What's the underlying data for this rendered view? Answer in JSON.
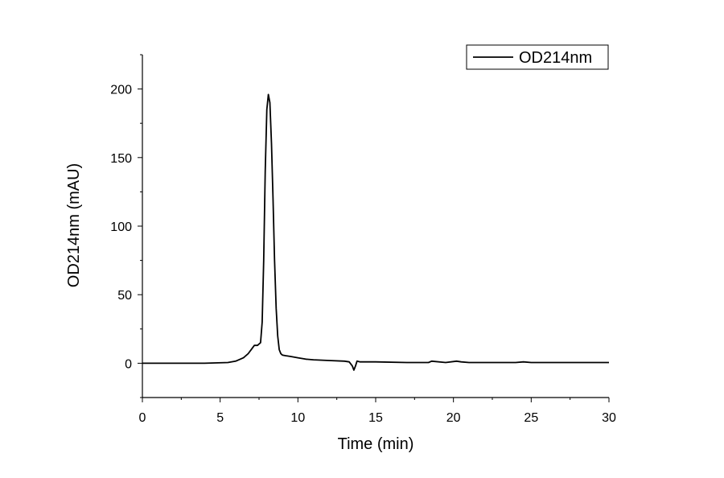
{
  "chart_data": {
    "type": "line",
    "title": "",
    "xlabel": "Time (min)",
    "ylabel": "OD214nm (mAU)",
    "xlim": [
      0,
      30
    ],
    "ylim": [
      -25,
      225
    ],
    "xticks": [
      0,
      5,
      10,
      15,
      20,
      25,
      30
    ],
    "xtick_labels": [
      "0",
      "5",
      "10",
      "15",
      "20",
      "25",
      "30"
    ],
    "yticks": [
      0,
      50,
      100,
      150,
      200
    ],
    "ytick_labels": [
      "0",
      "50",
      "100",
      "150",
      "200"
    ],
    "grid": false,
    "legend": {
      "position": "top-right",
      "entries": [
        "OD214nm"
      ]
    },
    "series": [
      {
        "name": "OD214nm",
        "color": "#000000",
        "x": [
          0,
          2,
          4,
          5.5,
          6.0,
          6.5,
          6.8,
          7.0,
          7.2,
          7.4,
          7.6,
          7.7,
          7.8,
          7.9,
          8.0,
          8.1,
          8.2,
          8.3,
          8.4,
          8.5,
          8.6,
          8.7,
          8.8,
          8.9,
          9.0,
          9.2,
          9.5,
          10.0,
          10.5,
          11.0,
          12.0,
          13.0,
          13.3,
          13.5,
          13.6,
          13.7,
          13.8,
          14.0,
          15.0,
          17.0,
          18.4,
          18.6,
          19.5,
          20.2,
          20.5,
          21.0,
          24.0,
          24.5,
          25.0,
          30.0
        ],
        "y": [
          0,
          0,
          0,
          0.5,
          1.5,
          4,
          7,
          10,
          13,
          13,
          15,
          30,
          75,
          140,
          185,
          196,
          190,
          160,
          120,
          75,
          40,
          20,
          10,
          7,
          6,
          5.5,
          5,
          4,
          3,
          2.5,
          2,
          1.5,
          1,
          -2,
          -5,
          -2,
          1.5,
          1,
          1,
          0.5,
          0.5,
          1.5,
          0.5,
          1.5,
          1,
          0.5,
          0.5,
          1,
          0.5,
          0.5
        ]
      }
    ]
  }
}
